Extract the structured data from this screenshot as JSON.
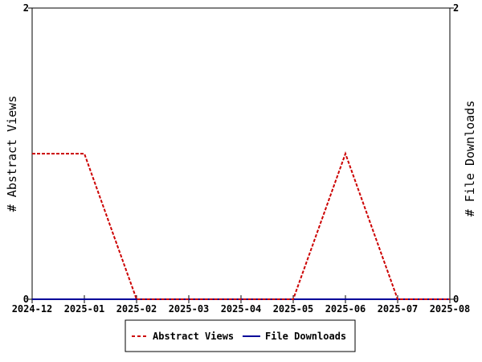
{
  "chart_data": {
    "type": "line",
    "x": [
      "2024-12",
      "2025-01",
      "2025-02",
      "2025-03",
      "2025-04",
      "2025-05",
      "2025-06",
      "2025-07",
      "2025-08"
    ],
    "series": [
      {
        "name": "Abstract Views",
        "values": [
          1,
          1,
          0,
          0,
          0,
          0,
          1,
          0,
          0
        ],
        "color": "#cc0000",
        "style": "dashed",
        "axis": "left"
      },
      {
        "name": "File Downloads",
        "values": [
          0,
          0,
          0,
          0,
          0,
          0,
          0,
          0,
          0
        ],
        "color": "#000099",
        "style": "solid",
        "axis": "right"
      }
    ],
    "ylabel_left": "# Abstract Views",
    "ylabel_right": "# File Downloads",
    "ylim_left": [
      0,
      2
    ],
    "ylim_right": [
      0,
      2
    ],
    "y_ticks": [
      "0",
      "2"
    ],
    "grid": false,
    "legend_position": "bottom"
  }
}
